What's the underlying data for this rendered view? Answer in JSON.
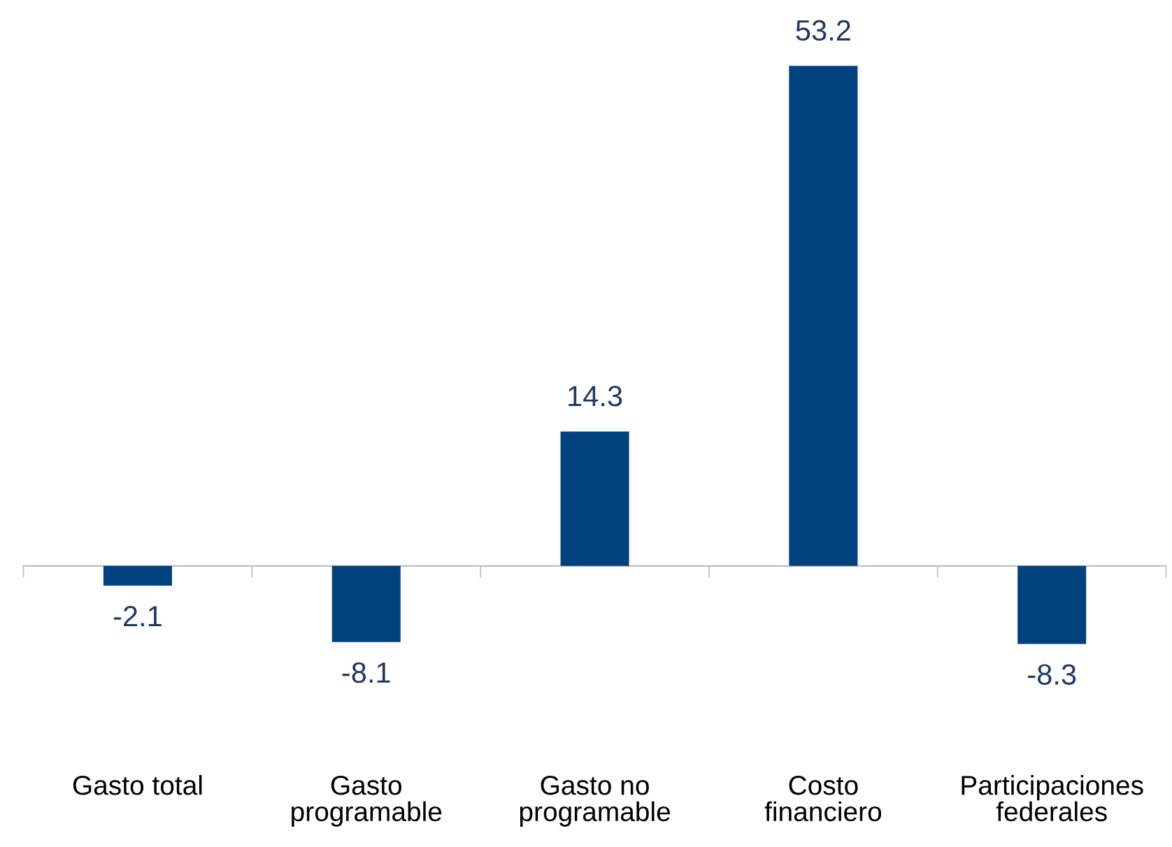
{
  "chart_data": {
    "type": "bar",
    "categories": [
      "Gasto total",
      "Gasto\nprogramable",
      "Gasto no\nprogramable",
      "Costo\nfinanciero",
      "Participaciones\nfederales"
    ],
    "values": [
      -2.1,
      -8.1,
      14.3,
      53.2,
      -8.3
    ],
    "color": "#00427e",
    "data_labels": true,
    "legend": false
  }
}
